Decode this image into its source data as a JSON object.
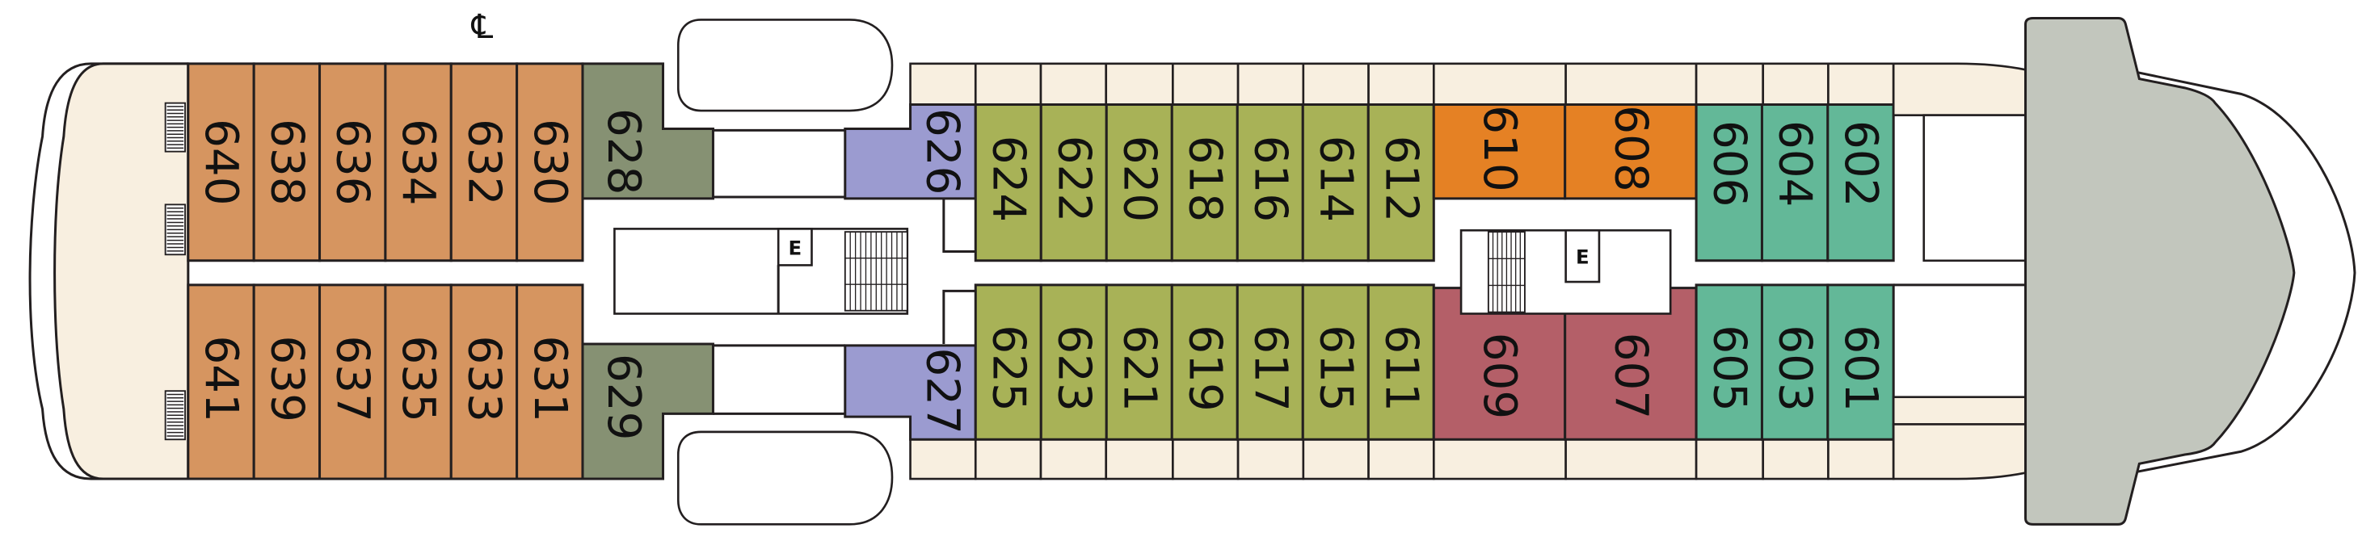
{
  "deck_plan": {
    "centerline_symbol": "℄",
    "elevator_label": "E",
    "category_colors": {
      "tan": "#d69560",
      "sage": "#869173",
      "lavender": "#9b9bd0",
      "olive": "#a8b257",
      "orange": "#e58124",
      "rose": "#b45f68",
      "teal": "#63b898",
      "deck": "#f8efe0",
      "bridge": "#c2c6bd"
    },
    "cabins": [
      {
        "number": "640",
        "category": "tan"
      },
      {
        "number": "638",
        "category": "tan"
      },
      {
        "number": "636",
        "category": "tan"
      },
      {
        "number": "634",
        "category": "tan"
      },
      {
        "number": "632",
        "category": "tan"
      },
      {
        "number": "630",
        "category": "tan"
      },
      {
        "number": "641",
        "category": "tan"
      },
      {
        "number": "639",
        "category": "tan"
      },
      {
        "number": "637",
        "category": "tan"
      },
      {
        "number": "635",
        "category": "tan"
      },
      {
        "number": "633",
        "category": "tan"
      },
      {
        "number": "631",
        "category": "tan"
      },
      {
        "number": "628",
        "category": "sage"
      },
      {
        "number": "629",
        "category": "sage"
      },
      {
        "number": "626",
        "category": "lavender"
      },
      {
        "number": "627",
        "category": "lavender"
      },
      {
        "number": "624",
        "category": "olive"
      },
      {
        "number": "622",
        "category": "olive"
      },
      {
        "number": "620",
        "category": "olive"
      },
      {
        "number": "618",
        "category": "olive"
      },
      {
        "number": "616",
        "category": "olive"
      },
      {
        "number": "614",
        "category": "olive"
      },
      {
        "number": "612",
        "category": "olive"
      },
      {
        "number": "625",
        "category": "olive"
      },
      {
        "number": "623",
        "category": "olive"
      },
      {
        "number": "621",
        "category": "olive"
      },
      {
        "number": "619",
        "category": "olive"
      },
      {
        "number": "617",
        "category": "olive"
      },
      {
        "number": "615",
        "category": "olive"
      },
      {
        "number": "611",
        "category": "olive"
      },
      {
        "number": "610",
        "category": "orange"
      },
      {
        "number": "608",
        "category": "orange"
      },
      {
        "number": "609",
        "category": "rose"
      },
      {
        "number": "607",
        "category": "rose"
      },
      {
        "number": "606",
        "category": "teal"
      },
      {
        "number": "604",
        "category": "teal"
      },
      {
        "number": "602",
        "category": "teal"
      },
      {
        "number": "605",
        "category": "teal"
      },
      {
        "number": "603",
        "category": "teal"
      },
      {
        "number": "601",
        "category": "teal"
      }
    ]
  }
}
